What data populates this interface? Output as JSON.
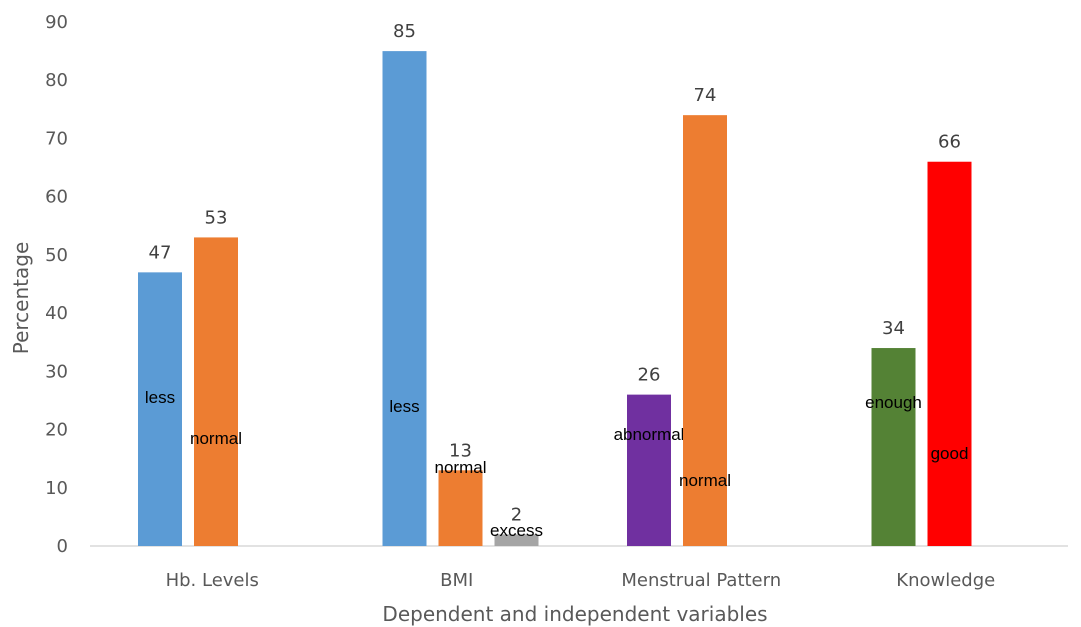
{
  "chart_data": {
    "type": "bar",
    "xlabel": "Dependent and independent variables",
    "ylabel": "Percentage",
    "ylim": [
      0,
      90
    ],
    "yticks": [
      0,
      10,
      20,
      30,
      40,
      50,
      60,
      70,
      80,
      90
    ],
    "grid": false,
    "legend": "none",
    "groups": [
      {
        "category": "Hb. Levels",
        "bars": [
          {
            "label": "less",
            "value": 47,
            "color": "#5B9BD5"
          },
          {
            "label": "normal",
            "value": 53,
            "color": "#ED7D31"
          }
        ]
      },
      {
        "category": "BMI",
        "bars": [
          {
            "label": "less",
            "value": 85,
            "color": "#5B9BD5"
          },
          {
            "label": "normal",
            "value": 13,
            "color": "#ED7D31"
          },
          {
            "label": "excess",
            "value": 2,
            "color": "#A5A5A5"
          }
        ]
      },
      {
        "category": "Menstrual Pattern",
        "bars": [
          {
            "label": "abnormal",
            "value": 26,
            "color": "#7030A0"
          },
          {
            "label": "normal",
            "value": 74,
            "color": "#ED7D31"
          }
        ]
      },
      {
        "category": "Knowledge",
        "bars": [
          {
            "label": "enough",
            "value": 34,
            "color": "#548235"
          },
          {
            "label": "good",
            "value": 66,
            "color": "#FF0000"
          }
        ]
      }
    ]
  }
}
